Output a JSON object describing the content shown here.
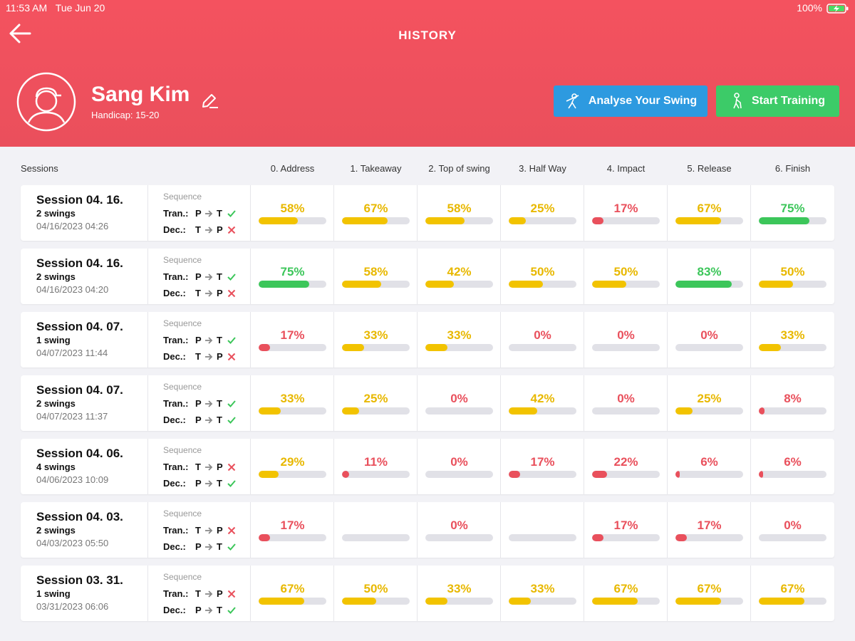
{
  "status_bar": {
    "time": "11:53 AM",
    "date": "Tue Jun 20",
    "battery": "100%"
  },
  "header": {
    "title": "HISTORY",
    "name": "Sang Kim",
    "handicap": "Handicap: 15-20",
    "buttons": [
      "Analyse Your Swing",
      "Start Training"
    ]
  },
  "table": {
    "sessions_header": "Sessions",
    "sequence_label": "Sequence",
    "tran_label": "Tran.:",
    "dec_label": "Dec.:",
    "columns": [
      "0. Address",
      "1. Takeaway",
      "2. Top of swing",
      "3. Half Way",
      "4. Impact",
      "5. Release",
      "6. Finish"
    ],
    "rows": [
      {
        "title": "Session 04. 16.",
        "swings": "2 swings",
        "date": "04/16/2023 04:26",
        "tran": {
          "from": "P",
          "to": "T",
          "ok": true
        },
        "dec": {
          "from": "T",
          "to": "P",
          "ok": false
        },
        "cells": [
          {
            "value": 58,
            "label": "58%"
          },
          {
            "value": 67,
            "label": "67%"
          },
          {
            "value": 58,
            "label": "58%"
          },
          {
            "value": 25,
            "label": "25%"
          },
          {
            "value": 17,
            "label": "17%"
          },
          {
            "value": 67,
            "label": "67%"
          },
          {
            "value": 75,
            "label": "75%"
          }
        ]
      },
      {
        "title": "Session 04. 16.",
        "swings": "2 swings",
        "date": "04/16/2023 04:20",
        "tran": {
          "from": "P",
          "to": "T",
          "ok": true
        },
        "dec": {
          "from": "T",
          "to": "P",
          "ok": false
        },
        "cells": [
          {
            "value": 75,
            "label": "75%"
          },
          {
            "value": 58,
            "label": "58%"
          },
          {
            "value": 42,
            "label": "42%"
          },
          {
            "value": 50,
            "label": "50%"
          },
          {
            "value": 50,
            "label": "50%"
          },
          {
            "value": 83,
            "label": "83%"
          },
          {
            "value": 50,
            "label": "50%"
          }
        ]
      },
      {
        "title": "Session 04. 07.",
        "swings": "1 swing",
        "date": "04/07/2023 11:44",
        "tran": {
          "from": "P",
          "to": "T",
          "ok": true
        },
        "dec": {
          "from": "T",
          "to": "P",
          "ok": false
        },
        "cells": [
          {
            "value": 17,
            "label": "17%"
          },
          {
            "value": 33,
            "label": "33%"
          },
          {
            "value": 33,
            "label": "33%"
          },
          {
            "value": 0,
            "label": "0%"
          },
          {
            "value": 0,
            "label": "0%"
          },
          {
            "value": 0,
            "label": "0%"
          },
          {
            "value": 33,
            "label": "33%"
          }
        ]
      },
      {
        "title": "Session 04. 07.",
        "swings": "2 swings",
        "date": "04/07/2023 11:37",
        "tran": {
          "from": "P",
          "to": "T",
          "ok": true
        },
        "dec": {
          "from": "P",
          "to": "T",
          "ok": true
        },
        "cells": [
          {
            "value": 33,
            "label": "33%"
          },
          {
            "value": 25,
            "label": "25%"
          },
          {
            "value": 0,
            "label": "0%"
          },
          {
            "value": 42,
            "label": "42%"
          },
          {
            "value": 0,
            "label": "0%"
          },
          {
            "value": 25,
            "label": "25%"
          },
          {
            "value": 8,
            "label": "8%"
          }
        ]
      },
      {
        "title": "Session 04. 06.",
        "swings": "4 swings",
        "date": "04/06/2023 10:09",
        "tran": {
          "from": "T",
          "to": "P",
          "ok": false
        },
        "dec": {
          "from": "P",
          "to": "T",
          "ok": true
        },
        "cells": [
          {
            "value": 29,
            "label": "29%"
          },
          {
            "value": 11,
            "label": "11%"
          },
          {
            "value": 0,
            "label": "0%"
          },
          {
            "value": 17,
            "label": "17%"
          },
          {
            "value": 22,
            "label": "22%"
          },
          {
            "value": 6,
            "label": "6%"
          },
          {
            "value": 6,
            "label": "6%"
          }
        ]
      },
      {
        "title": "Session 04. 03.",
        "swings": "2 swings",
        "date": "04/03/2023 05:50",
        "tran": {
          "from": "T",
          "to": "P",
          "ok": false
        },
        "dec": {
          "from": "P",
          "to": "T",
          "ok": true
        },
        "cells": [
          {
            "value": 17,
            "label": "17%"
          },
          null,
          {
            "value": 0,
            "label": "0%"
          },
          null,
          {
            "value": 17,
            "label": "17%"
          },
          {
            "value": 17,
            "label": "17%"
          },
          {
            "value": 0,
            "label": "0%"
          }
        ]
      },
      {
        "title": "Session 03. 31.",
        "swings": "1 swing",
        "date": "03/31/2023 06:06",
        "tran": {
          "from": "T",
          "to": "P",
          "ok": false
        },
        "dec": {
          "from": "P",
          "to": "T",
          "ok": true
        },
        "cells": [
          {
            "value": 67,
            "label": "67%"
          },
          {
            "value": 50,
            "label": "50%"
          },
          {
            "value": 33,
            "label": "33%"
          },
          {
            "value": 33,
            "label": "33%"
          },
          {
            "value": 67,
            "label": "67%"
          },
          {
            "value": 67,
            "label": "67%"
          },
          {
            "value": 67,
            "label": "67%"
          }
        ]
      }
    ]
  }
}
